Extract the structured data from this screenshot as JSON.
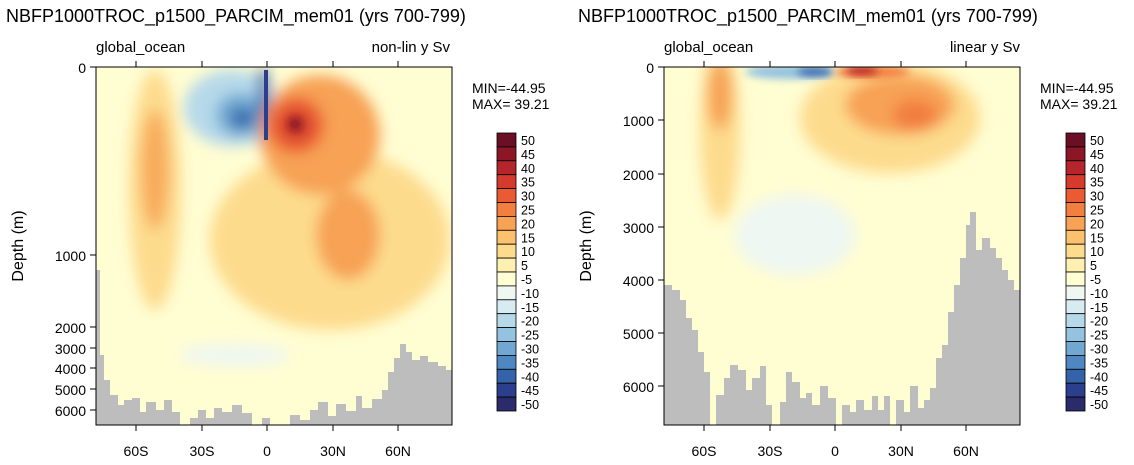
{
  "panels": [
    {
      "title": "NBFP1000TROC_p1500_PARCIM_mem01 (yrs 700-799)",
      "left_label": "global_ocean",
      "right_label": "non-lin y Sv",
      "ylabel": "Depth (m)",
      "stats": {
        "min": "MIN=-44.95",
        "max": "MAX= 39.21"
      },
      "y_ticks": [
        "0",
        "1000",
        "2000",
        "3000",
        "4000",
        "5000",
        "6000"
      ],
      "x_ticks": [
        "60S",
        "30S",
        "0",
        "30N",
        "60N"
      ]
    },
    {
      "title": "NBFP1000TROC_p1500_PARCIM_mem01 (yrs 700-799)",
      "left_label": "global_ocean",
      "right_label": "linear y Sv",
      "ylabel": "Depth (m)",
      "stats": {
        "min": "MIN=-44.95",
        "max": "MAX= 39.21"
      },
      "y_ticks": [
        "0",
        "1000",
        "2000",
        "3000",
        "4000",
        "5000",
        "6000"
      ],
      "x_ticks": [
        "60S",
        "30S",
        "0",
        "30N",
        "60N"
      ]
    }
  ],
  "colorbar": {
    "labels": [
      "50",
      "45",
      "40",
      "35",
      "30",
      "25",
      "20",
      "15",
      "10",
      "5",
      "-5",
      "-10",
      "-15",
      "-20",
      "-25",
      "-30",
      "-35",
      "-40",
      "-45",
      "-50"
    ],
    "colors": [
      "#6b0f26",
      "#8c1526",
      "#b5252b",
      "#d63a2c",
      "#ea5a33",
      "#f27e3f",
      "#f7a254",
      "#fbc16d",
      "#fddb8d",
      "#fef0b0",
      "#fffdd2",
      "#eef7f2",
      "#d6ebf2",
      "#b6d9ea",
      "#93c3e0",
      "#70a8d2",
      "#4e87c2",
      "#3563a9",
      "#2c3f8c",
      "#2b2a6a"
    ]
  },
  "chart_data": [
    {
      "type": "heatmap",
      "title": "NBFP1000TROC_p1500_PARCIM_mem01 (yrs 700-799)",
      "subtitle_left": "global_ocean",
      "subtitle_right": "non-lin y Sv",
      "ylabel": "Depth (m)",
      "xlim": [
        -80,
        80
      ],
      "ylim": [
        6700,
        0
      ],
      "y_scale": "non-linear",
      "x_ticks": [
        -60,
        -30,
        0,
        30,
        60
      ],
      "y_ticks": [
        0,
        1000,
        2000,
        3000,
        4000,
        5000,
        6000
      ],
      "min": -44.95,
      "max": 39.21,
      "features": [
        {
          "lat": -52,
          "depth": 700,
          "value": 20
        },
        {
          "lat": -12,
          "depth": 250,
          "value": -35
        },
        {
          "lat": -1,
          "depth": 150,
          "value": -44.95
        },
        {
          "lat": 13,
          "depth": 300,
          "value": 35
        },
        {
          "lat": 38,
          "depth": 900,
          "value": 20
        },
        {
          "lat": -20,
          "depth": 3500,
          "value": -5
        }
      ]
    },
    {
      "type": "heatmap",
      "title": "NBFP1000TROC_p1500_PARCIM_mem01 (yrs 700-799)",
      "subtitle_left": "global_ocean",
      "subtitle_right": "linear y Sv",
      "ylabel": "Depth (m)",
      "xlim": [
        -80,
        80
      ],
      "ylim": [
        6700,
        0
      ],
      "y_scale": "linear",
      "x_ticks": [
        -60,
        -30,
        0,
        30,
        60
      ],
      "y_ticks": [
        0,
        1000,
        2000,
        3000,
        4000,
        5000,
        6000
      ],
      "min": -44.95,
      "max": 39.21,
      "features": [
        {
          "lat": -52,
          "depth": 700,
          "value": 20
        },
        {
          "lat": -5,
          "depth": 50,
          "value": -40
        },
        {
          "lat": 12,
          "depth": 50,
          "value": 35
        },
        {
          "lat": 35,
          "depth": 850,
          "value": 25
        },
        {
          "lat": -20,
          "depth": 3200,
          "value": -5
        }
      ]
    }
  ]
}
